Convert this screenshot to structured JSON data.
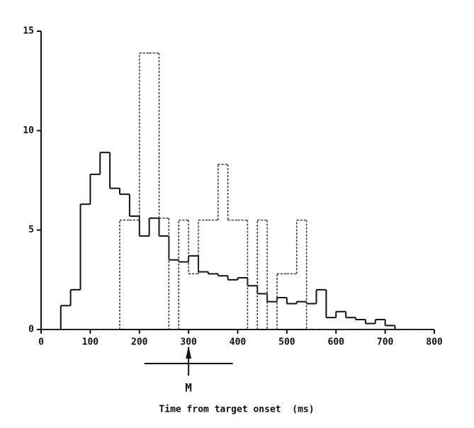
{
  "chart_data": {
    "type": "histogram",
    "x_label": "Time from target onset  (ms)",
    "bins": [
      0,
      20,
      40,
      60,
      80,
      100,
      120,
      140,
      160,
      180,
      200,
      220,
      240,
      260,
      280,
      300,
      320,
      340,
      360,
      380,
      400,
      420,
      440,
      460,
      480,
      500,
      520,
      540,
      560,
      580,
      600,
      620,
      640,
      660,
      680,
      700,
      720,
      740,
      760,
      780,
      800
    ],
    "series": [
      {
        "color": "#111111",
        "style": "solid",
        "values": [
          0,
          0,
          1.2,
          2.0,
          6.3,
          7.8,
          8.9,
          7.1,
          6.8,
          5.7,
          4.7,
          5.6,
          4.7,
          3.5,
          3.4,
          3.7,
          2.9,
          2.8,
          2.7,
          2.5,
          2.6,
          2.2,
          1.8,
          1.4,
          1.6,
          1.3,
          1.4,
          1.3,
          2.0,
          0.6,
          0.9,
          0.6,
          0.5,
          0.3,
          0.5,
          0.2,
          0,
          0,
          0,
          0
        ]
      },
      {
        "color": "#333333",
        "style": "dotted",
        "values": [
          0,
          0,
          0,
          0,
          0,
          0,
          0,
          0,
          5.5,
          5.5,
          13.9,
          13.9,
          5.6,
          0,
          5.5,
          2.8,
          5.5,
          5.5,
          8.3,
          5.5,
          5.5,
          0,
          5.5,
          0,
          2.8,
          2.8,
          5.5,
          0,
          0,
          0,
          0,
          0,
          0,
          0,
          0,
          0,
          0,
          0,
          0,
          0
        ]
      }
    ],
    "marker": {
      "label": "M",
      "x": 300,
      "range": [
        210,
        390
      ]
    },
    "xlim": [
      0,
      800
    ],
    "xticks": [
      0,
      100,
      200,
      300,
      400,
      500,
      600,
      700,
      800
    ],
    "ylim": [
      0,
      15
    ],
    "yticks": [
      0,
      5,
      10,
      15
    ]
  }
}
